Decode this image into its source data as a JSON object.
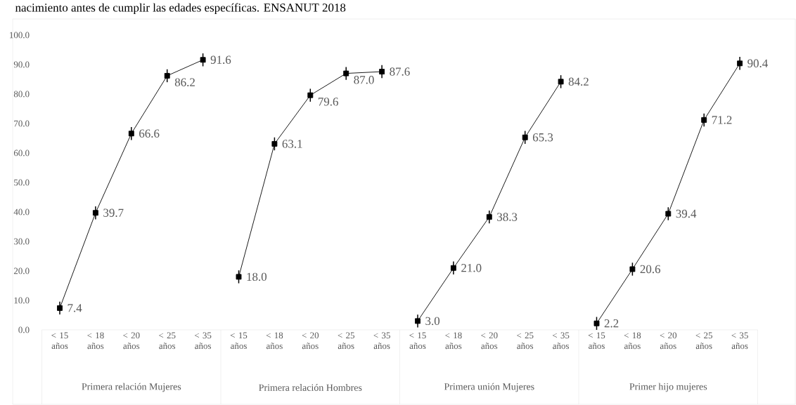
{
  "chart_data": {
    "type": "line",
    "title": "nacimiento antes de cumplir las edades específicas. ENSANUT 2018",
    "categories": [
      "< 15 años",
      "< 18 años",
      "< 20 años",
      "< 25 años",
      "< 35 años",
      "< 15 años",
      "< 18 años",
      "< 20 años",
      "< 25 años",
      "< 35 años",
      "< 15 años",
      "< 18 años",
      "< 20 años",
      "< 25 años",
      "< 35 años",
      "< 15 años",
      "< 18 años",
      "< 20 años",
      "< 25 años",
      "< 35 años"
    ],
    "annotations": [
      "Primera relación Mujeres",
      "Primera relación Hombres",
      "Primera unión Mujeres",
      "Primer hijo mujeres"
    ],
    "series": [
      {
        "color": "#000000",
        "values": [
          7.4,
          39.7,
          66.6,
          86.2,
          91.6,
          null,
          null,
          null,
          null,
          null,
          null,
          null,
          null,
          null,
          null,
          null,
          null,
          null,
          null,
          null
        ],
        "errors": [
          1.0,
          1.0,
          1.0,
          1.0,
          1.0,
          null,
          null,
          null,
          null,
          null,
          null,
          null,
          null,
          null,
          null,
          null,
          null,
          null,
          null,
          null
        ],
        "value_labels": [
          "7.4",
          "39.7",
          "66.6",
          "86.2",
          "91.6",
          null,
          null,
          null,
          null,
          null,
          null,
          null,
          null,
          null,
          null,
          null,
          null,
          null,
          null,
          null
        ]
      },
      {
        "color": "#000000",
        "values": [
          null,
          null,
          null,
          null,
          null,
          18.0,
          63.1,
          79.6,
          87.0,
          87.6,
          null,
          null,
          null,
          null,
          null,
          null,
          null,
          null,
          null,
          null
        ],
        "errors": [
          null,
          null,
          null,
          null,
          null,
          1.0,
          1.0,
          1.0,
          1.0,
          1.0,
          null,
          null,
          null,
          null,
          null,
          null,
          null,
          null,
          null,
          null
        ],
        "value_labels": [
          null,
          null,
          null,
          null,
          null,
          "18.0",
          "63.1",
          "79.6",
          "87.0",
          "87.6",
          null,
          null,
          null,
          null,
          null,
          null,
          null,
          null,
          null,
          null
        ]
      },
      {
        "color": "#000000",
        "values": [
          null,
          null,
          null,
          null,
          null,
          null,
          null,
          null,
          null,
          null,
          3.0,
          21.0,
          38.3,
          65.3,
          84.2,
          null,
          null,
          null,
          null,
          null
        ],
        "errors": [
          null,
          null,
          null,
          null,
          null,
          null,
          null,
          null,
          null,
          null,
          1.0,
          1.0,
          1.0,
          1.0,
          1.0,
          null,
          null,
          null,
          null,
          null
        ],
        "value_labels": [
          null,
          null,
          null,
          null,
          null,
          null,
          null,
          null,
          null,
          null,
          "3.0",
          "21.0",
          "38.3",
          "65.3",
          "84.2",
          null,
          null,
          null,
          null,
          null
        ]
      },
      {
        "color": "#000000",
        "values": [
          null,
          null,
          null,
          null,
          null,
          null,
          null,
          null,
          null,
          null,
          null,
          null,
          null,
          null,
          null,
          2.2,
          20.6,
          39.4,
          71.2,
          90.4
        ],
        "errors": [
          null,
          null,
          null,
          null,
          null,
          null,
          null,
          null,
          null,
          null,
          null,
          null,
          null,
          null,
          null,
          1.0,
          1.0,
          1.0,
          1.0,
          1.0
        ],
        "value_labels": [
          null,
          null,
          null,
          null,
          null,
          null,
          null,
          null,
          null,
          null,
          null,
          null,
          null,
          null,
          null,
          "2.2",
          "20.6",
          "39.4",
          "71.2",
          "90.4"
        ]
      }
    ],
    "ylim": [
      0,
      100
    ],
    "yticks": [
      {
        "value": 0,
        "label": "0.0"
      },
      {
        "value": 10,
        "label": "10.0"
      },
      {
        "value": 20,
        "label": "20.0"
      },
      {
        "value": 30,
        "label": "30.0"
      },
      {
        "value": 40,
        "label": "40.0"
      },
      {
        "value": 50,
        "label": "50.0"
      },
      {
        "value": 60,
        "label": "60.0"
      },
      {
        "value": 70,
        "label": "70.0"
      },
      {
        "value": 80,
        "label": "80.0"
      },
      {
        "value": 90,
        "label": "90.0"
      },
      {
        "value": 100,
        "label": "100.0"
      }
    ],
    "grid": false,
    "marker": "square",
    "line_style": "solid"
  }
}
